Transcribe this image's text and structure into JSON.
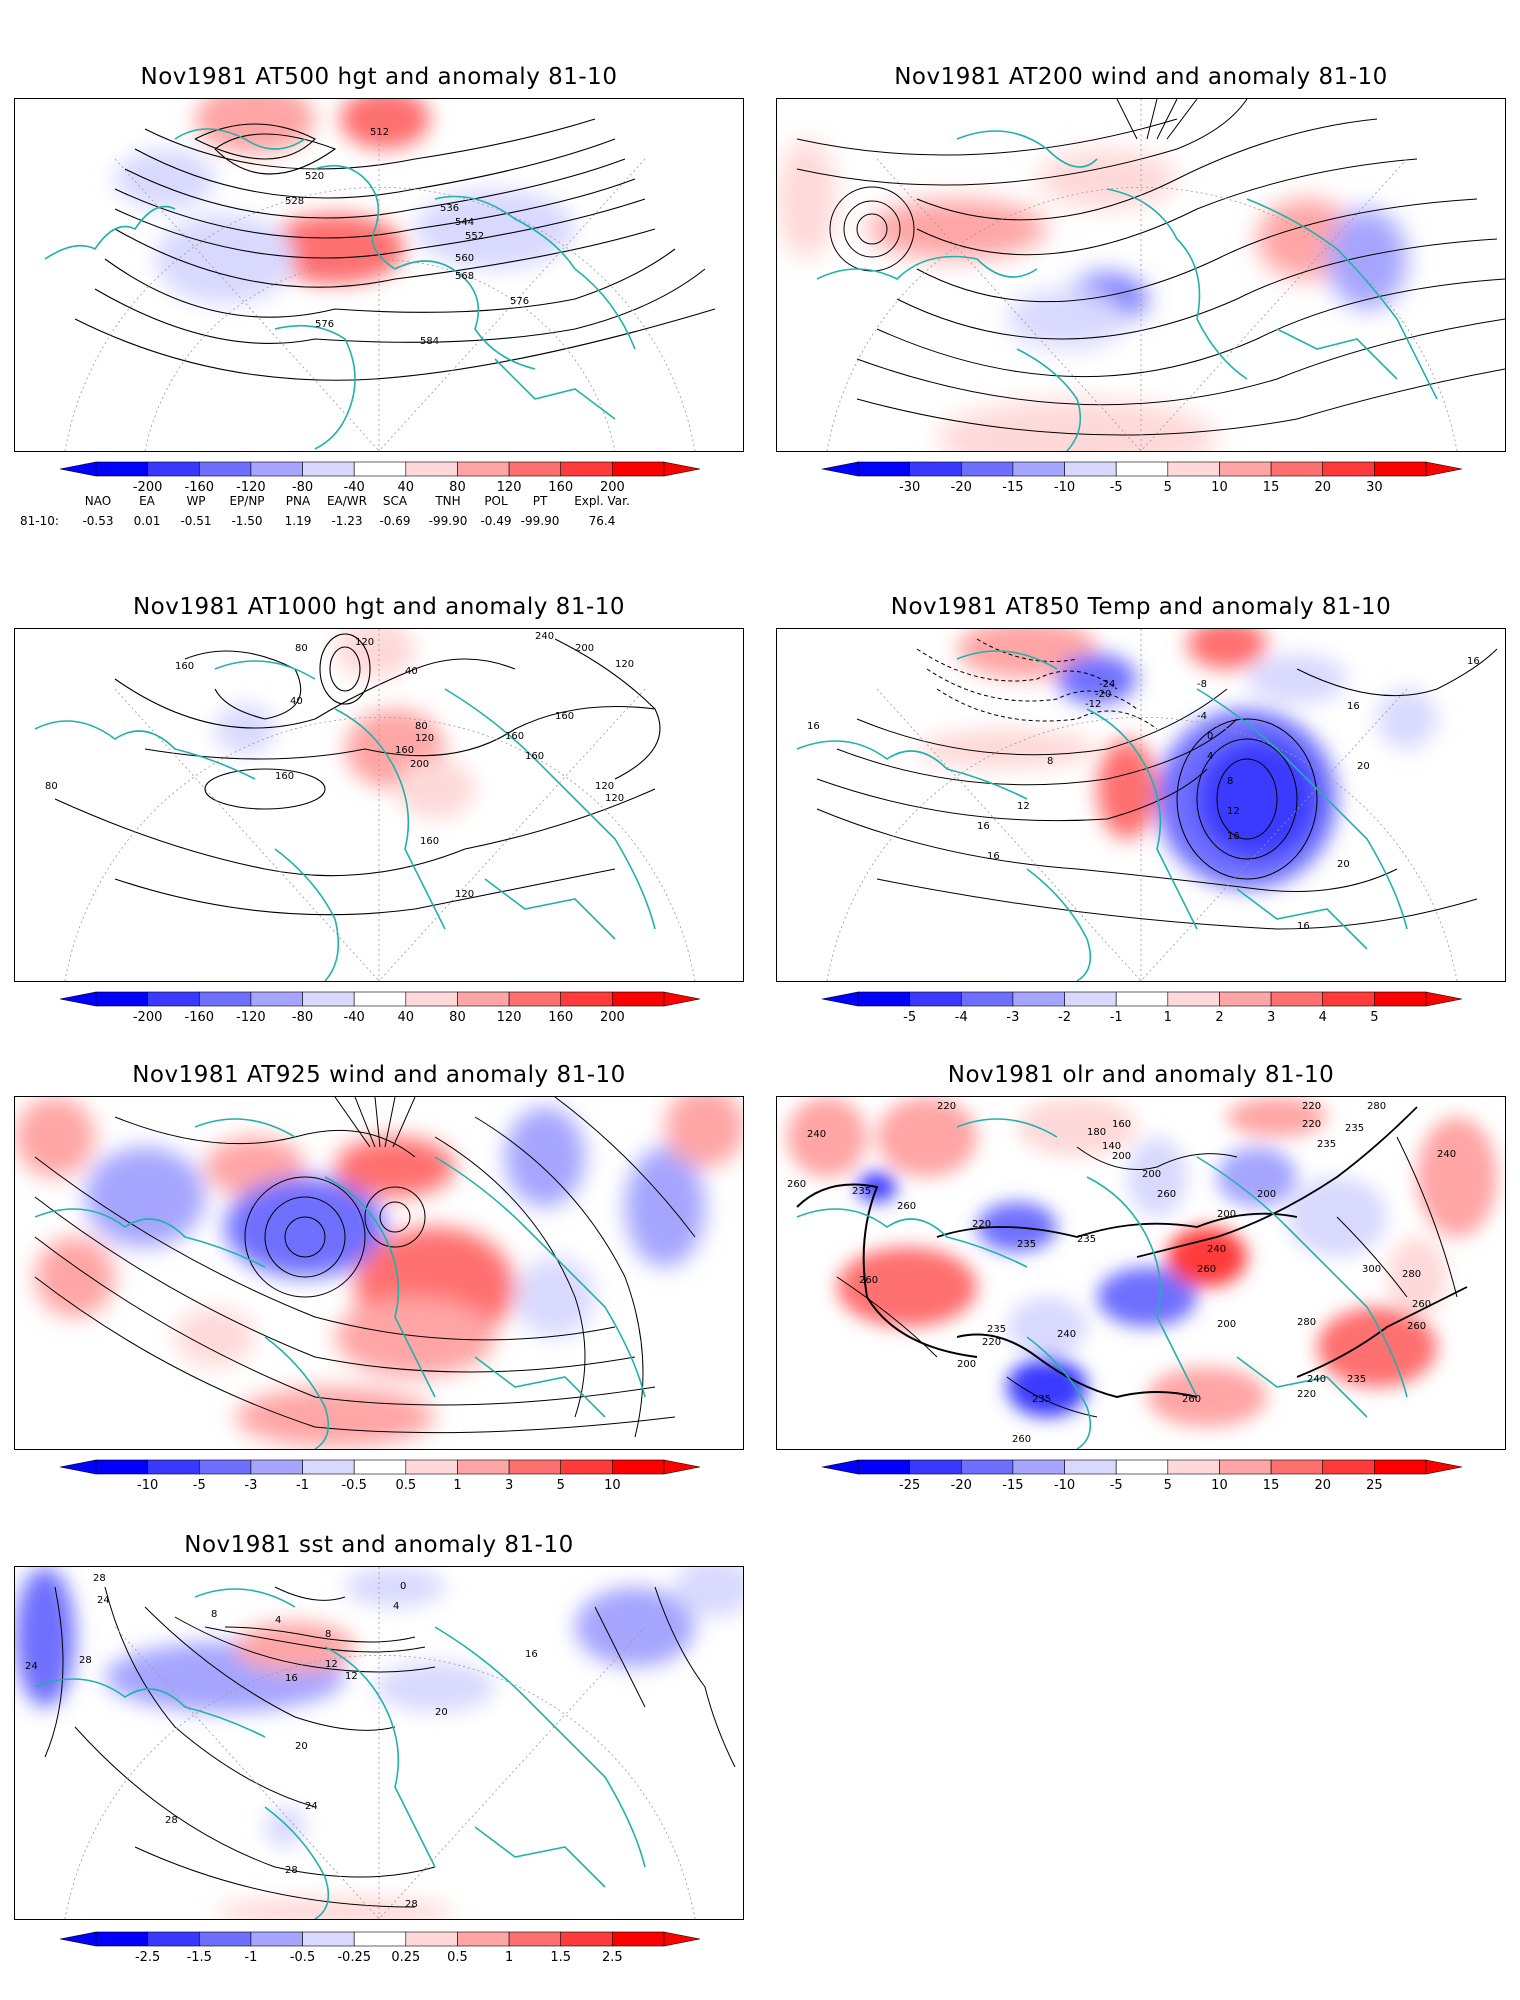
{
  "panels": [
    {
      "id": "p1",
      "title": "Nov1981 AT500 hgt and anomaly 81-10",
      "contour_labels": [
        "512",
        "520",
        "528",
        "536",
        "544",
        "552",
        "560",
        "568",
        "576",
        "576",
        "584"
      ],
      "colorbar": [
        "-200",
        "-160",
        "-120",
        "-80",
        "-40",
        "40",
        "80",
        "120",
        "160",
        "200"
      ]
    },
    {
      "id": "p2",
      "title": "Nov1981 AT200 wind and anomaly 81-10",
      "contour_labels": [],
      "colorbar": [
        "-30",
        "-20",
        "-15",
        "-10",
        "-5",
        "5",
        "10",
        "15",
        "20",
        "30"
      ]
    },
    {
      "id": "p3",
      "title": "Nov1981 AT1000 hgt and anomaly 81-10",
      "contour_labels": [
        "120",
        "160",
        "80",
        "40",
        "40",
        "240",
        "200",
        "120",
        "160",
        "160",
        "80",
        "120",
        "160",
        "200",
        "160",
        "80",
        "160",
        "120",
        "120",
        "160",
        "120"
      ],
      "colorbar": [
        "-200",
        "-160",
        "-120",
        "-80",
        "-40",
        "40",
        "80",
        "120",
        "160",
        "200"
      ]
    },
    {
      "id": "p4",
      "title": "Nov1981 AT850 Temp and anomaly 81-10",
      "contour_labels": [
        "-24",
        "-20",
        "-12",
        "-8",
        "-4",
        "0",
        "4",
        "8",
        "12",
        "16",
        "16",
        "16",
        "8",
        "12",
        "16",
        "16",
        "20",
        "20",
        "16",
        "16"
      ],
      "colorbar": [
        "-5",
        "-4",
        "-3",
        "-2",
        "-1",
        "1",
        "2",
        "3",
        "4",
        "5"
      ]
    },
    {
      "id": "p5",
      "title": "Nov1981 AT925 wind and anomaly 81-10",
      "contour_labels": [],
      "colorbar": [
        "-10",
        "-5",
        "-3",
        "-1",
        "-0.5",
        "0.5",
        "1",
        "3",
        "5",
        "10"
      ]
    },
    {
      "id": "p6",
      "title": "Nov1981 olr and anomaly 81-10",
      "contour_labels": [
        "240",
        "220",
        "160",
        "140",
        "180",
        "200",
        "200",
        "220",
        "220",
        "235",
        "280",
        "235",
        "240",
        "260",
        "235",
        "260",
        "220",
        "235",
        "235",
        "200",
        "200",
        "260",
        "240",
        "260",
        "300",
        "280",
        "260",
        "260",
        "280",
        "240",
        "235",
        "220",
        "260",
        "200",
        "235",
        "260",
        "220",
        "240",
        "260",
        "235",
        "200"
      ],
      "colorbar": [
        "-25",
        "-20",
        "-15",
        "-10",
        "-5",
        "5",
        "10",
        "15",
        "20",
        "25"
      ]
    },
    {
      "id": "p7",
      "title": "Nov1981 sst and anomaly 81-10",
      "contour_labels": [
        "28",
        "24",
        "28",
        "24",
        "8",
        "4",
        "12",
        "8",
        "16",
        "12",
        "20",
        "20",
        "24",
        "28",
        "28",
        "28",
        "0",
        "4",
        "16"
      ],
      "colorbar": [
        "-2.5",
        "-1.5",
        "-1",
        "-0.5",
        "-0.25",
        "0.25",
        "0.5",
        "1",
        "1.5",
        "2.5"
      ]
    }
  ],
  "teleconnection": {
    "headers": [
      "NAO",
      "EA",
      "WP",
      "EP/NP",
      "PNA",
      "EA/WR",
      "SCA",
      "TNH",
      "POL",
      "PT",
      "Expl. Var."
    ],
    "row_label": "81-10:",
    "values": [
      "-0.53",
      "0.01",
      "-0.51",
      "-1.50",
      "1.19",
      "-1.23",
      "-0.69",
      "-99.90",
      "-0.49",
      "-99.90",
      "76.4"
    ]
  },
  "colors": {
    "coast": "#20b2aa",
    "blues": [
      "#0000ff",
      "#3a3aff",
      "#6f6fff",
      "#a5a5ff",
      "#d9d9ff"
    ],
    "reds": [
      "#ffd9d9",
      "#ffa5a5",
      "#ff6f6f",
      "#ff3a3a",
      "#ff0000"
    ]
  }
}
